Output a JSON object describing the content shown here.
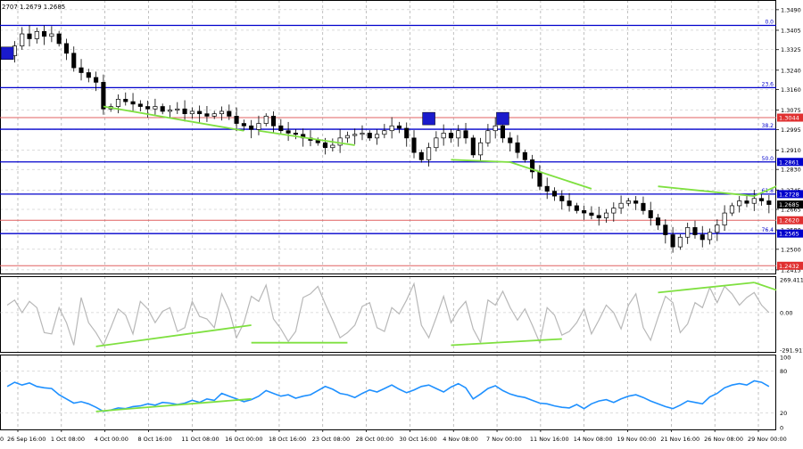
{
  "header": {
    "ohlc_text": "2707 1.2679 1.2685"
  },
  "chart_data": [
    {
      "type": "candlestick",
      "name": "",
      "ylim": [
        1.24,
        1.353
      ],
      "price_ticks": [
        "1.3490",
        "1.3405",
        "1.3325",
        "1.3240",
        "1.3160",
        "1.3075",
        "1.2995",
        "1.2910",
        "1.2830",
        "1.2745",
        "1.2665",
        "1.2580",
        "1.2500",
        "1.2415"
      ],
      "x_ticks": [
        "26 Sep 16:00",
        "1 Oct 08:00",
        "4 Oct 00:00",
        "8 Oct 16:00",
        "11 Oct 08:00",
        "16 Oct 00:00",
        "18 Oct 16:00",
        "23 Oct 08:00",
        "28 Oct 00:00",
        "30 Oct 16:00",
        "4 Nov 08:00",
        "7 Nov 00:00",
        "11 Nov 16:00",
        "14 Nov 08:00",
        "19 Nov 00:00",
        "21 Nov 16:00",
        "26 Nov 08:00",
        "29 Nov 00:00"
      ],
      "x_tick_left_partial": "0",
      "current_price": "1.2685",
      "closes": [
        1.33,
        1.334,
        1.339,
        1.337,
        1.34,
        1.338,
        1.339,
        1.335,
        1.331,
        1.325,
        1.323,
        1.321,
        1.319,
        1.308,
        1.309,
        1.312,
        1.311,
        1.31,
        1.309,
        1.308,
        1.309,
        1.307,
        1.3075,
        1.308,
        1.306,
        1.307,
        1.306,
        1.305,
        1.306,
        1.307,
        1.305,
        1.302,
        1.301,
        1.2995,
        1.302,
        1.305,
        1.301,
        1.299,
        1.298,
        1.2975,
        1.296,
        1.295,
        1.294,
        1.292,
        1.293,
        1.296,
        1.297,
        1.2975,
        1.298,
        1.296,
        1.2975,
        1.299,
        1.301,
        1.3,
        1.296,
        1.29,
        1.287,
        1.292,
        1.296,
        1.298,
        1.296,
        1.299,
        1.296,
        1.289,
        1.294,
        1.299,
        1.301,
        1.296,
        1.294,
        1.29,
        1.287,
        1.282,
        1.276,
        1.274,
        1.272,
        1.27,
        1.268,
        1.266,
        1.265,
        1.264,
        1.263,
        1.265,
        1.267,
        1.269,
        1.27,
        1.269,
        1.266,
        1.263,
        1.26,
        1.256,
        1.251,
        1.255,
        1.259,
        1.256,
        1.254,
        1.257,
        1.26,
        1.265,
        1.268,
        1.27,
        1.269,
        1.271,
        1.27,
        1.2685
      ],
      "fibonacci_levels": [
        {
          "label": "0.0",
          "value": 1.3425
        },
        {
          "label": "23.6",
          "value": 1.3168
        },
        {
          "label": "38.2",
          "value": 1.2996
        },
        {
          "label": "50.0",
          "value": 1.2861
        },
        {
          "label": "61.8",
          "value": 1.2728
        },
        {
          "label": "76.4",
          "value": 1.2565
        }
      ],
      "red_levels": [
        {
          "label": "1.3044",
          "value": 1.3044
        },
        {
          "label": "1.2620",
          "value": 1.262
        },
        {
          "label": "1.2432",
          "value": 1.2432
        }
      ],
      "price_labels_blue": [
        "1.2861",
        "1.2728",
        "1.2565"
      ],
      "divergence_lines": [
        {
          "from": [
            13,
            1.309
          ],
          "to": [
            32,
            1.299
          ]
        },
        {
          "from": [
            34,
            1.299
          ],
          "to": [
            47,
            1.293
          ]
        },
        {
          "from": [
            60,
            1.287
          ],
          "to": [
            68,
            1.286
          ]
        },
        {
          "from": [
            68,
            1.286
          ],
          "to": [
            79,
            1.275
          ]
        },
        {
          "from": [
            88,
            1.276
          ],
          "to": [
            101,
            1.272
          ]
        },
        {
          "from": [
            101,
            1.272
          ],
          "to": [
            104,
            1.276
          ]
        }
      ],
      "markers": [
        {
          "index": 0,
          "value": 1.331
        },
        {
          "index": 57,
          "value": 1.304
        },
        {
          "index": 67,
          "value": 1.304
        }
      ]
    },
    {
      "type": "line",
      "name": "",
      "ticks": [
        "269.4111",
        "0.00",
        "-291.9114"
      ],
      "ylim": [
        -291.9114,
        269.4111
      ],
      "values": [
        60,
        100,
        0,
        90,
        40,
        -160,
        -170,
        40,
        -80,
        -260,
        120,
        -80,
        -160,
        -260,
        -120,
        30,
        -20,
        -170,
        90,
        30,
        -80,
        10,
        40,
        -150,
        -120,
        90,
        -30,
        -50,
        -120,
        150,
        20,
        -200,
        -80,
        130,
        90,
        220,
        -50,
        -130,
        -230,
        -150,
        120,
        150,
        210,
        70,
        -60,
        -200,
        -160,
        -100,
        50,
        80,
        -120,
        -150,
        40,
        -10,
        100,
        230,
        -100,
        -200,
        -40,
        130,
        -80,
        20,
        90,
        -130,
        -240,
        100,
        60,
        170,
        40,
        -60,
        30,
        -100,
        -240,
        40,
        -20,
        -180,
        -150,
        -80,
        30,
        -170,
        -60,
        60,
        0,
        -130,
        60,
        150,
        -120,
        -220,
        -40,
        130,
        80,
        -160,
        -90,
        80,
        40,
        200,
        80,
        210,
        150,
        60,
        120,
        160,
        60,
        0
      ],
      "divergence_lines": [
        {
          "from": [
            12,
            -270
          ],
          "to": [
            33,
            -100
          ]
        },
        {
          "from": [
            33,
            -240
          ],
          "to": [
            46,
            -240
          ]
        },
        {
          "from": [
            60,
            -260
          ],
          "to": [
            75,
            -210
          ]
        },
        {
          "from": [
            88,
            160
          ],
          "to": [
            101,
            240
          ]
        },
        {
          "from": [
            101,
            240
          ],
          "to": [
            104,
            180
          ]
        }
      ]
    },
    {
      "type": "line",
      "name": "",
      "ticks": [
        "100",
        "80",
        "20",
        "0"
      ],
      "ylim": [
        0,
        100
      ],
      "values": [
        58,
        64,
        60,
        63,
        58,
        56,
        55,
        46,
        40,
        34,
        36,
        33,
        28,
        22,
        24,
        27,
        26,
        29,
        30,
        33,
        31,
        35,
        34,
        32,
        34,
        38,
        35,
        40,
        38,
        48,
        44,
        40,
        36,
        39,
        44,
        52,
        48,
        44,
        46,
        41,
        44,
        46,
        52,
        58,
        54,
        48,
        46,
        42,
        48,
        53,
        50,
        55,
        60,
        54,
        49,
        53,
        58,
        60,
        55,
        50,
        57,
        62,
        56,
        40,
        47,
        55,
        59,
        52,
        47,
        44,
        42,
        38,
        34,
        33,
        30,
        28,
        27,
        32,
        26,
        33,
        37,
        39,
        35,
        40,
        44,
        46,
        42,
        37,
        33,
        29,
        26,
        31,
        37,
        35,
        33,
        43,
        48,
        56,
        60,
        62,
        60,
        66,
        64,
        58
      ],
      "divergence_lines": [
        {
          "from": [
            12,
            22
          ],
          "to": [
            33,
            40
          ]
        }
      ]
    }
  ]
}
